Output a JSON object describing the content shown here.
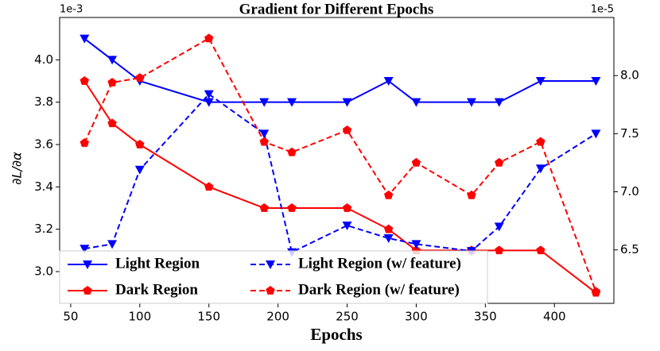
{
  "chart_data": {
    "type": "line",
    "title": "Gradient for Different Epochs",
    "xlabel": "Epochs",
    "ylabel": "∂L/∂α",
    "y_offset_label": "1e-3",
    "y2_offset_label": "1e-5",
    "x": [
      60,
      80,
      100,
      150,
      190,
      210,
      250,
      280,
      300,
      340,
      360,
      390,
      430
    ],
    "xlim": [
      42,
      443
    ],
    "xticks": [
      50,
      100,
      150,
      200,
      250,
      300,
      350,
      400
    ],
    "ylim": [
      2.85,
      4.2
    ],
    "yticks": [
      {
        "value": 3.0,
        "label": "3.0"
      },
      {
        "value": 3.2,
        "label": "3.2"
      },
      {
        "value": 3.4,
        "label": "3.4"
      },
      {
        "value": 3.6,
        "label": "3.6"
      },
      {
        "value": 3.8,
        "label": "3.8"
      },
      {
        "value": 4.0,
        "label": "4.0"
      }
    ],
    "y2lim": [
      6.04,
      8.5
    ],
    "y2ticks": [
      {
        "value": 6.5,
        "label": "6.5"
      },
      {
        "value": 7.0,
        "label": "7.0"
      },
      {
        "value": 7.5,
        "label": "7.5"
      },
      {
        "value": 8.0,
        "label": "8.0"
      }
    ],
    "legend": "lower left",
    "series": [
      {
        "name": "Light Region",
        "color": "#0000ff",
        "marker": "triangle-down",
        "linestyle": "solid",
        "values": [
          4.1,
          4.0,
          3.9,
          3.8,
          3.8,
          3.8,
          3.8,
          3.9,
          3.8,
          3.8,
          3.8,
          3.9,
          3.9
        ]
      },
      {
        "name": "Dark Region",
        "color": "#ff0000",
        "marker": "pentagon",
        "linestyle": "solid",
        "values": [
          3.9,
          3.7,
          3.6,
          3.4,
          3.3,
          3.3,
          3.3,
          3.2,
          3.1,
          3.1,
          3.1,
          3.1,
          2.9
        ]
      },
      {
        "name": "Light Region (w/ feature)",
        "color": "#0000ff",
        "marker": "triangle-down",
        "linestyle": "dashed",
        "axis": "y2",
        "values": [
          6.51,
          6.55,
          7.19,
          7.84,
          7.5,
          6.48,
          6.71,
          6.6,
          6.55,
          6.49,
          6.7,
          7.2,
          7.5
        ]
      },
      {
        "name": "Dark Region (w/ feature)",
        "color": "#ff0000",
        "marker": "pentagon",
        "linestyle": "dashed",
        "axis": "y2",
        "values": [
          7.42,
          7.94,
          7.98,
          8.32,
          7.43,
          7.34,
          7.53,
          6.97,
          7.25,
          6.97,
          7.25,
          7.43,
          6.14
        ]
      }
    ]
  }
}
